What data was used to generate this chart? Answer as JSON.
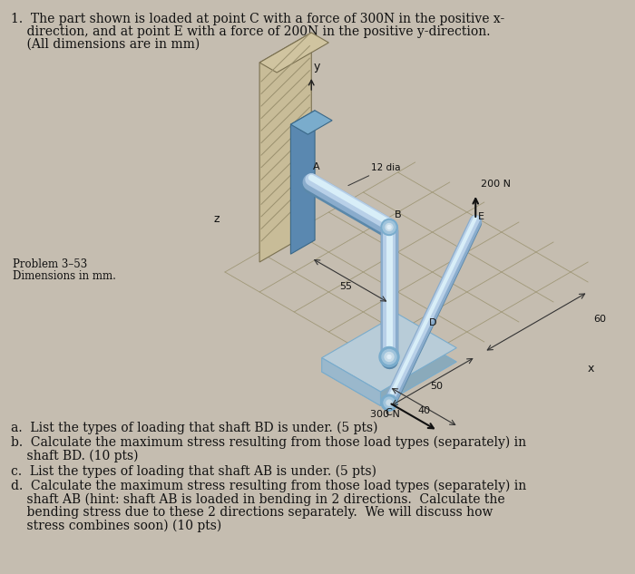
{
  "bg_color": "#c5bdb0",
  "title_line1": "1.  The part shown is loaded at point C with a force of 300N in the positive x-",
  "title_line2": "    direction, and at point E with a force of 200N in the positive y-direction.",
  "title_line3": "    (All dimensions are in mm)",
  "problem_label": "Problem 3–53",
  "dim_label": "Dimensions in mm.",
  "qa": "a.  List the types of loading that shaft BD is under. (5 pts)",
  "qb1": "b.  Calculate the maximum stress resulting from those load types (separately) in",
  "qb2": "    shaft BD. (10 pts)",
  "qc": "c.  List the types of loading that shaft AB is under. (5 pts)",
  "qd1": "d.  Calculate the maximum stress resulting from those load types (separately) in",
  "qd2": "    shaft AB (hint: shaft AB is loaded in bending in 2 directions.  Calculate the",
  "qd3": "    bending stress due to these 2 directions separately.  We will discuss how",
  "qd4": "    stress combines soon) (10 pts)",
  "font_size_title": 10.0,
  "font_size_q": 10.0,
  "text_color": "#111111",
  "shaft_top": "#b8d0e8",
  "shaft_mid": "#8aaccc",
  "shaft_dark": "#5a88aa",
  "wall_face": "#c8bc98",
  "wall_hatch": "#9a906e",
  "bracket_blue": "#5a88b0",
  "bar_face": "#b8ccd8",
  "grid_color": "#a09878"
}
